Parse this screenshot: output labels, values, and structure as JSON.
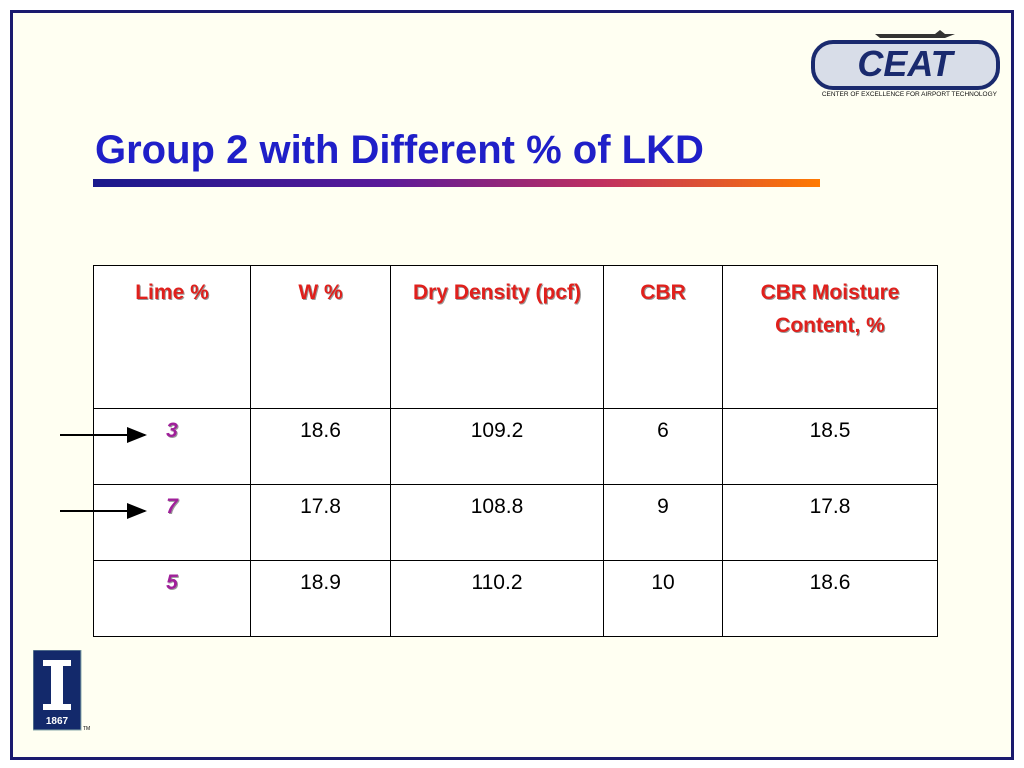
{
  "header": {
    "title": "Group 2 with Different % of LKD",
    "logo_text": "CEAT",
    "logo_caption": "CENTER OF EXCELLENCE FOR AIRPORT TECHNOLOGY"
  },
  "table": {
    "columns": [
      "Lime %",
      "W %",
      "Dry Density (pcf)",
      "CBR",
      "CBR Moisture Content, %"
    ],
    "rows": [
      [
        "3",
        "18.6",
        "109.2",
        "6",
        "18.5"
      ],
      [
        "7",
        "17.8",
        "108.8",
        "9",
        "17.8"
      ],
      [
        "5",
        "18.9",
        "110.2",
        "10",
        "18.6"
      ]
    ]
  },
  "footer": {
    "year": "1867",
    "trademark": "TM"
  }
}
